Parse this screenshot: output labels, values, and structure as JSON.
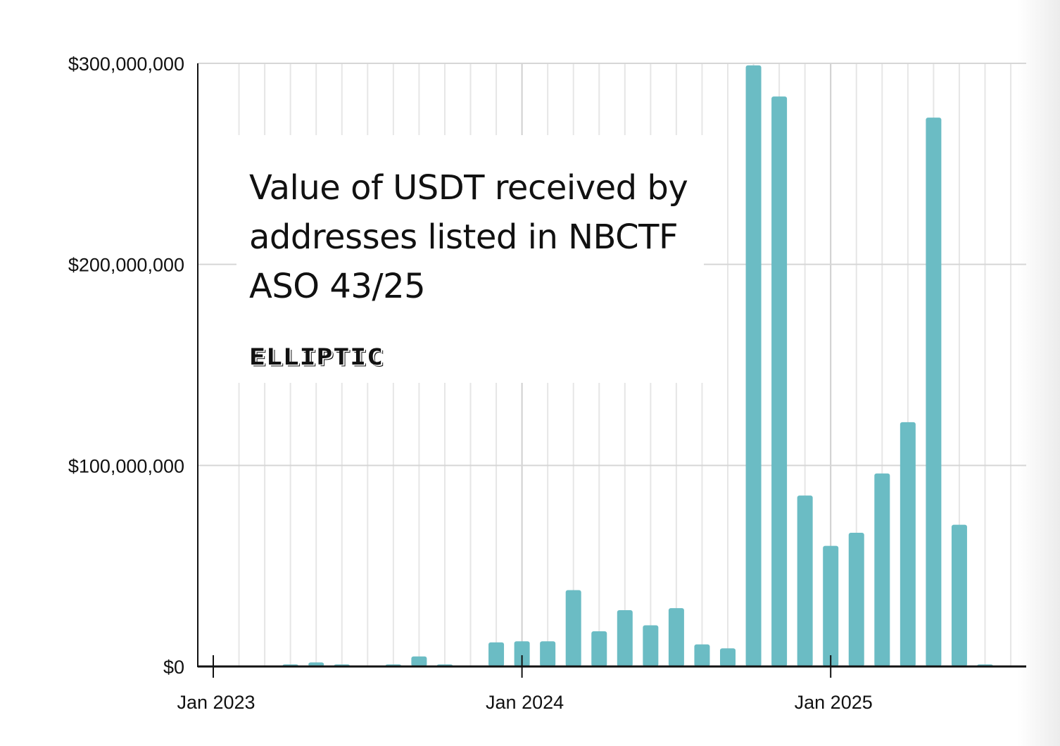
{
  "chart_data": {
    "type": "bar",
    "title": "Value of USDT received by addresses listed in NBCTF ASO 43/25",
    "logo": "ELLIPTIC",
    "xlabel": "",
    "ylabel": "",
    "ylim": [
      0,
      300000000
    ],
    "yticks": [
      {
        "value": 0,
        "label": "$0"
      },
      {
        "value": 100000000,
        "label": "$100,000,000"
      },
      {
        "value": 200000000,
        "label": "$200,000,000"
      },
      {
        "value": 300000000,
        "label": "$300,000,000"
      }
    ],
    "xticks": [
      {
        "month": "2023-01",
        "label": "Jan 2023"
      },
      {
        "month": "2024-01",
        "label": "Jan 2024"
      },
      {
        "month": "2025-01",
        "label": "Jan 2025"
      }
    ],
    "grid": true,
    "bar_color": "#6bbcc4",
    "categories": [
      "2023-04",
      "2023-05",
      "2023-06",
      "2023-08",
      "2023-09",
      "2023-10",
      "2023-12",
      "2024-01",
      "2024-02",
      "2024-03",
      "2024-04",
      "2024-05",
      "2024-06",
      "2024-07",
      "2024-08",
      "2024-09",
      "2024-10",
      "2024-11",
      "2024-12",
      "2025-01",
      "2025-02",
      "2025-03",
      "2025-04",
      "2025-05",
      "2025-06",
      "2025-07"
    ],
    "values": [
      1000000,
      2000000,
      1000000,
      1000000,
      5000000,
      1000000,
      12000000,
      12500000,
      12500000,
      38000000,
      17500000,
      28000000,
      20500000,
      29000000,
      11000000,
      9000000,
      299000000,
      283500000,
      85000000,
      60000000,
      66500000,
      96000000,
      121500000,
      273000000,
      70500000,
      1000000
    ]
  }
}
